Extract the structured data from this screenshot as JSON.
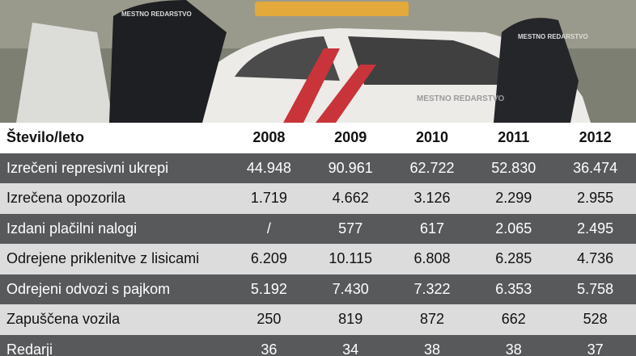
{
  "table": {
    "header": [
      "Število/leto",
      "2008",
      "2009",
      "2010",
      "2011",
      "2012"
    ],
    "rows": [
      [
        "Izrečeni represivni ukrepi",
        "44.948",
        "90.961",
        "62.722",
        "52.830",
        "36.474"
      ],
      [
        "Izrečena opozorila",
        "1.719",
        "4.662",
        "3.126",
        "2.299",
        "2.955"
      ],
      [
        "Izdani plačilni nalogi",
        "/",
        "577",
        "617",
        "2.065",
        "2.495"
      ],
      [
        "Odrejene priklenitve z lisicami",
        "6.209",
        "10.115",
        "6.808",
        "6.285",
        "4.736"
      ],
      [
        "Odrejeni odvozi s pajkom",
        "5.192",
        "7.430",
        "7.322",
        "6.353",
        "5.758"
      ],
      [
        "Zapuščena vozila",
        "250",
        "819",
        "872",
        "662",
        "528"
      ],
      [
        "Redarji",
        "36",
        "34",
        "38",
        "38",
        "37"
      ]
    ]
  },
  "photo": {
    "badges": [
      "MESTNO REDARSTVO",
      "MESTNO REDARSTVO",
      "MESTNO REDARSTVO"
    ]
  }
}
